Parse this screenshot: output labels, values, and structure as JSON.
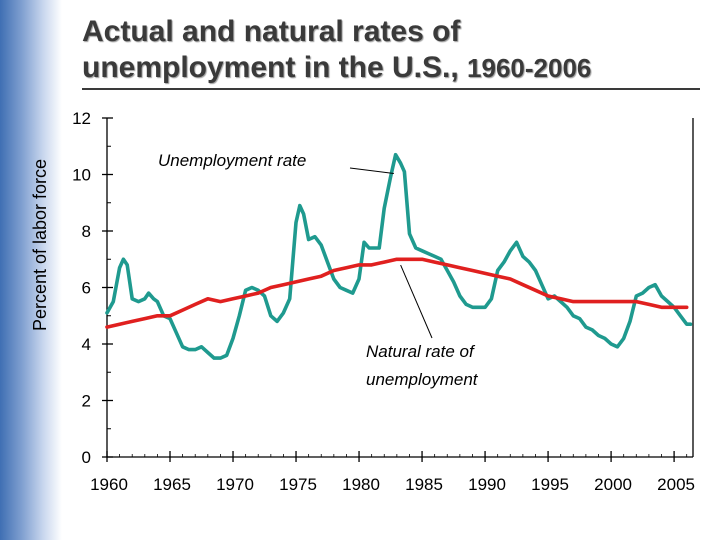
{
  "title": {
    "line1": "Actual and natural rates of",
    "line2": "unemployment in the U.S.,",
    "years": "1960-2006"
  },
  "chart_data": {
    "type": "line",
    "ylabel": "Percent of labor force",
    "xlabel": "",
    "xlim": [
      1960,
      2006.5
    ],
    "ylim": [
      0,
      12
    ],
    "x_ticks": [
      1960,
      1965,
      1970,
      1975,
      1980,
      1985,
      1990,
      1995,
      2000,
      2005
    ],
    "y_ticks": [
      0,
      2,
      4,
      6,
      8,
      10,
      12
    ],
    "grid": false,
    "annotations": [
      {
        "text": "Unemployment rate",
        "series": "actual",
        "x": 1983.0,
        "y": 10.0
      },
      {
        "text": "Natural rate of",
        "series": "natural",
        "x": 1983.3,
        "y": 6.9
      },
      {
        "text": "unemployment",
        "series": "natural"
      }
    ],
    "series": [
      {
        "key": "actual",
        "color": "#1f9a8f",
        "points": [
          [
            1960.0,
            5.1
          ],
          [
            1960.5,
            5.5
          ],
          [
            1961.0,
            6.7
          ],
          [
            1961.3,
            7.0
          ],
          [
            1961.6,
            6.8
          ],
          [
            1962.0,
            5.6
          ],
          [
            1962.5,
            5.5
          ],
          [
            1963.0,
            5.6
          ],
          [
            1963.3,
            5.8
          ],
          [
            1963.7,
            5.6
          ],
          [
            1964.0,
            5.5
          ],
          [
            1964.5,
            5.0
          ],
          [
            1965.0,
            4.9
          ],
          [
            1965.5,
            4.4
          ],
          [
            1966.0,
            3.9
          ],
          [
            1966.5,
            3.8
          ],
          [
            1967.0,
            3.8
          ],
          [
            1967.5,
            3.9
          ],
          [
            1968.0,
            3.7
          ],
          [
            1968.5,
            3.5
          ],
          [
            1969.0,
            3.5
          ],
          [
            1969.5,
            3.6
          ],
          [
            1970.0,
            4.2
          ],
          [
            1970.5,
            5.0
          ],
          [
            1971.0,
            5.9
          ],
          [
            1971.5,
            6.0
          ],
          [
            1972.0,
            5.9
          ],
          [
            1972.5,
            5.7
          ],
          [
            1973.0,
            5.0
          ],
          [
            1973.5,
            4.8
          ],
          [
            1974.0,
            5.1
          ],
          [
            1974.5,
            5.6
          ],
          [
            1975.0,
            8.3
          ],
          [
            1975.3,
            8.9
          ],
          [
            1975.6,
            8.6
          ],
          [
            1976.0,
            7.7
          ],
          [
            1976.5,
            7.8
          ],
          [
            1977.0,
            7.5
          ],
          [
            1977.5,
            6.9
          ],
          [
            1978.0,
            6.3
          ],
          [
            1978.5,
            6.0
          ],
          [
            1979.0,
            5.9
          ],
          [
            1979.5,
            5.8
          ],
          [
            1980.0,
            6.3
          ],
          [
            1980.4,
            7.6
          ],
          [
            1980.8,
            7.4
          ],
          [
            1981.2,
            7.4
          ],
          [
            1981.6,
            7.4
          ],
          [
            1982.0,
            8.8
          ],
          [
            1982.5,
            9.9
          ],
          [
            1982.9,
            10.7
          ],
          [
            1983.3,
            10.4
          ],
          [
            1983.6,
            10.1
          ],
          [
            1984.0,
            7.9
          ],
          [
            1984.5,
            7.4
          ],
          [
            1985.0,
            7.3
          ],
          [
            1985.5,
            7.2
          ],
          [
            1986.0,
            7.1
          ],
          [
            1986.5,
            7.0
          ],
          [
            1987.0,
            6.6
          ],
          [
            1987.5,
            6.2
          ],
          [
            1988.0,
            5.7
          ],
          [
            1988.5,
            5.4
          ],
          [
            1989.0,
            5.3
          ],
          [
            1989.5,
            5.3
          ],
          [
            1990.0,
            5.3
          ],
          [
            1990.5,
            5.6
          ],
          [
            1991.0,
            6.6
          ],
          [
            1991.5,
            6.9
          ],
          [
            1992.0,
            7.3
          ],
          [
            1992.5,
            7.6
          ],
          [
            1993.0,
            7.1
          ],
          [
            1993.5,
            6.9
          ],
          [
            1994.0,
            6.6
          ],
          [
            1994.5,
            6.1
          ],
          [
            1995.0,
            5.6
          ],
          [
            1995.5,
            5.7
          ],
          [
            1996.0,
            5.5
          ],
          [
            1996.5,
            5.3
          ],
          [
            1997.0,
            5.0
          ],
          [
            1997.5,
            4.9
          ],
          [
            1998.0,
            4.6
          ],
          [
            1998.5,
            4.5
          ],
          [
            1999.0,
            4.3
          ],
          [
            1999.5,
            4.2
          ],
          [
            2000.0,
            4.0
          ],
          [
            2000.5,
            3.9
          ],
          [
            2001.0,
            4.2
          ],
          [
            2001.5,
            4.8
          ],
          [
            2002.0,
            5.7
          ],
          [
            2002.5,
            5.8
          ],
          [
            2003.0,
            6.0
          ],
          [
            2003.5,
            6.1
          ],
          [
            2004.0,
            5.7
          ],
          [
            2004.5,
            5.5
          ],
          [
            2005.0,
            5.3
          ],
          [
            2005.5,
            5.0
          ],
          [
            2006.0,
            4.7
          ],
          [
            2006.3,
            4.7
          ]
        ]
      },
      {
        "key": "natural",
        "color": "#e0201f",
        "points": [
          [
            1960.0,
            4.6
          ],
          [
            1961.0,
            4.7
          ],
          [
            1962.0,
            4.8
          ],
          [
            1963.0,
            4.9
          ],
          [
            1964.0,
            5.0
          ],
          [
            1965.0,
            5.0
          ],
          [
            1966.0,
            5.2
          ],
          [
            1967.0,
            5.4
          ],
          [
            1968.0,
            5.6
          ],
          [
            1969.0,
            5.5
          ],
          [
            1970.0,
            5.6
          ],
          [
            1971.0,
            5.7
          ],
          [
            1972.0,
            5.8
          ],
          [
            1973.0,
            6.0
          ],
          [
            1974.0,
            6.1
          ],
          [
            1975.0,
            6.2
          ],
          [
            1976.0,
            6.3
          ],
          [
            1977.0,
            6.4
          ],
          [
            1978.0,
            6.6
          ],
          [
            1979.0,
            6.7
          ],
          [
            1980.0,
            6.8
          ],
          [
            1981.0,
            6.8
          ],
          [
            1982.0,
            6.9
          ],
          [
            1983.0,
            7.0
          ],
          [
            1984.0,
            7.0
          ],
          [
            1985.0,
            7.0
          ],
          [
            1986.0,
            6.9
          ],
          [
            1987.0,
            6.8
          ],
          [
            1988.0,
            6.7
          ],
          [
            1989.0,
            6.6
          ],
          [
            1990.0,
            6.5
          ],
          [
            1991.0,
            6.4
          ],
          [
            1992.0,
            6.3
          ],
          [
            1993.0,
            6.1
          ],
          [
            1994.0,
            5.9
          ],
          [
            1995.0,
            5.7
          ],
          [
            1996.0,
            5.6
          ],
          [
            1997.0,
            5.5
          ],
          [
            1998.0,
            5.5
          ],
          [
            1999.0,
            5.5
          ],
          [
            2000.0,
            5.5
          ],
          [
            2001.0,
            5.5
          ],
          [
            2002.0,
            5.5
          ],
          [
            2003.0,
            5.4
          ],
          [
            2004.0,
            5.3
          ],
          [
            2005.0,
            5.3
          ],
          [
            2006.0,
            5.3
          ]
        ]
      }
    ]
  }
}
